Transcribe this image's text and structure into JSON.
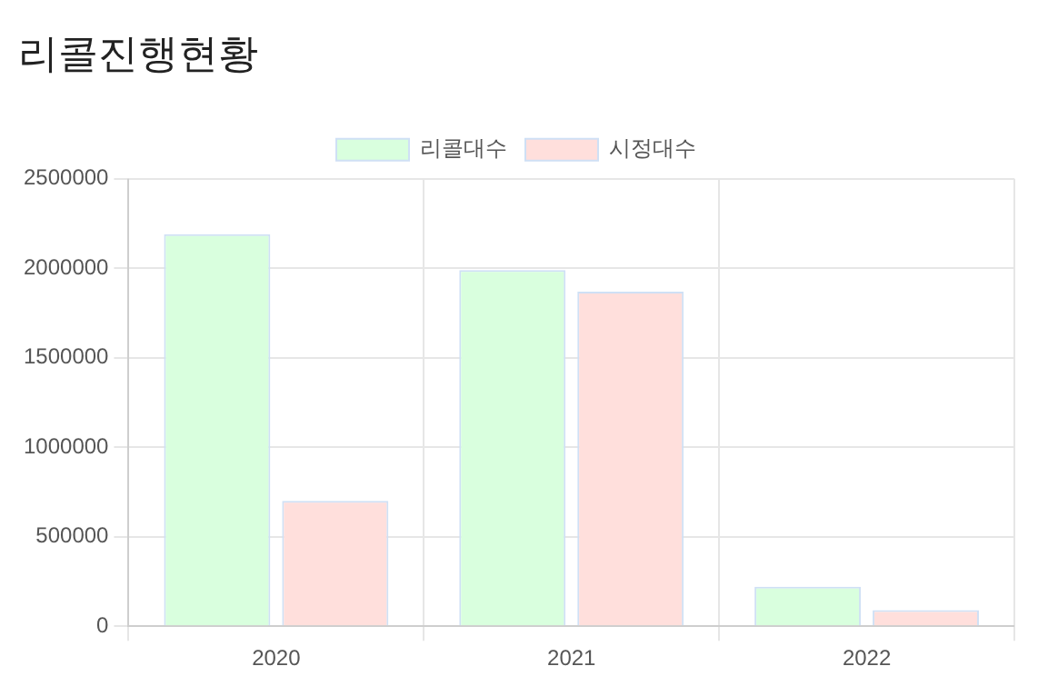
{
  "chart_data": {
    "type": "bar",
    "title": "리콜진행현황",
    "categories": [
      "2020",
      "2021",
      "2022"
    ],
    "series": [
      {
        "name": "리콜대수",
        "color": "#d9ffde",
        "values": [
          2190000,
          1990000,
          220000
        ]
      },
      {
        "name": "시정대수",
        "color": "#ffdfdc",
        "values": [
          700000,
          1870000,
          90000
        ]
      }
    ],
    "ylim": [
      0,
      2500000
    ],
    "yticks": [
      0,
      500000,
      1000000,
      1500000,
      2000000,
      2500000
    ],
    "grid": true,
    "legend": "top"
  }
}
